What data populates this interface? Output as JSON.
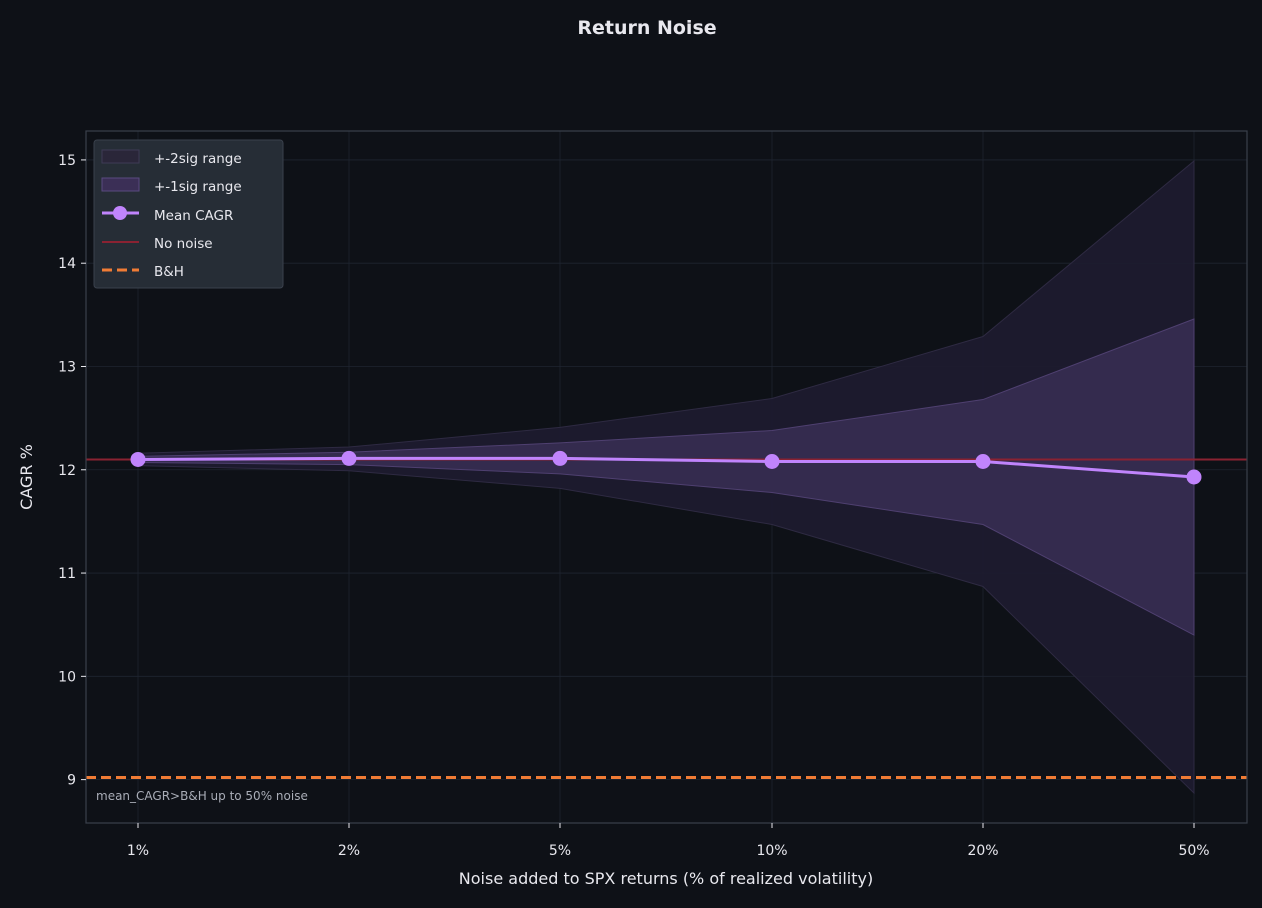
{
  "chart_data": {
    "type": "line",
    "title": "Return Noise",
    "xlabel": "Noise added to SPX returns (% of realized volatility)",
    "ylabel": "CAGR %",
    "categories": [
      "1%",
      "2%",
      "5%",
      "10%",
      "20%",
      "50%"
    ],
    "yticks": [
      "9",
      "10",
      "11",
      "12",
      "13",
      "14",
      "15"
    ],
    "ylim": [
      8.58,
      15.28
    ],
    "grid": true,
    "legend_position": "top-left",
    "legend": [
      "+-2sig range",
      "+-1sig range",
      "Mean CAGR",
      "No noise",
      "B&H"
    ],
    "series": [
      {
        "name": "Mean CAGR",
        "values": [
          12.1,
          12.11,
          12.11,
          12.08,
          12.08,
          11.93
        ]
      }
    ],
    "bands": [
      {
        "name": "+-2sig range",
        "lower": [
          12.04,
          11.99,
          11.82,
          11.47,
          10.87,
          8.87
        ],
        "upper": [
          12.16,
          12.22,
          12.41,
          12.69,
          13.29,
          14.99
        ]
      },
      {
        "name": "+-1sig range",
        "lower": [
          12.07,
          12.05,
          11.96,
          11.78,
          11.47,
          10.4
        ],
        "upper": [
          12.13,
          12.17,
          12.26,
          12.38,
          12.68,
          13.46
        ]
      }
    ],
    "reference_lines": [
      {
        "name": "No noise",
        "value": 12.1
      },
      {
        "name": "B&H",
        "value": 9.02
      }
    ],
    "annotation": "mean_CAGR>B&H up to 50% noise",
    "colors": {
      "background": "#0e1117",
      "mean_line": "#c084fc",
      "band_2sig": "#1e1b2e",
      "band_1sig": "#3b2f56",
      "no_noise": "#8a2232",
      "bh": "#f07c35",
      "text": "#e8e8ee",
      "grid": "#1f2530",
      "legend_bg": "#262d36"
    }
  }
}
